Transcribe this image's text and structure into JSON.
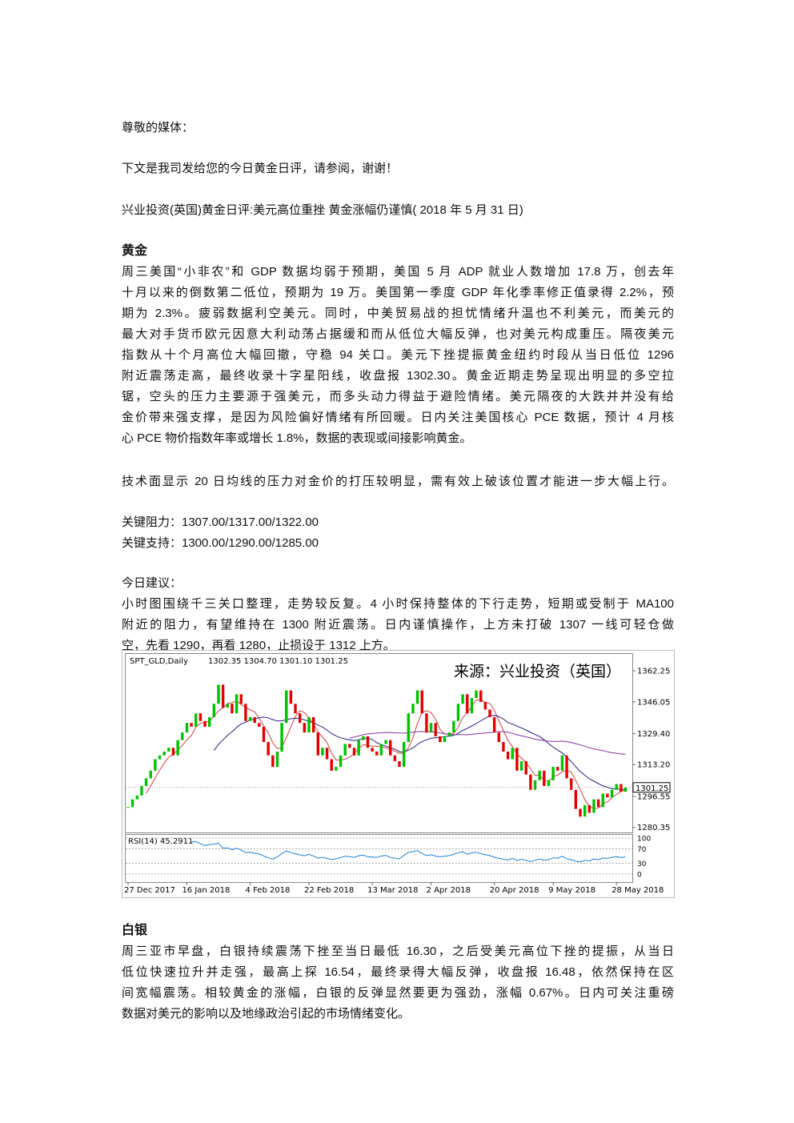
{
  "greeting": "尊敬的媒体：",
  "intro": "下文是我司发给您的今日黄金日评，请参阅，谢谢！",
  "title": "兴业投资(英国)黄金日评:美元高位重挫 黄金涨幅仍谨慎( 2018 年 5 月 31 日)",
  "gold": {
    "heading": "黄金",
    "lines": [
      "周三美国“小非农”和 GDP 数据均弱于预期，美国 5 月 ADP 就业人数增加 17.8 万，创去年",
      "十月以来的倒数第二低位，预期为 19 万。美国第一季度 GDP 年化季率修正值录得 2.2%，预",
      "期为 2.3%。疲弱数据利空美元。同时，中美贸易战的担忧情绪升温也不利美元，而美元的",
      "最大对手货币欧元因意大利动荡占据缓和而从低位大幅反弹，也对美元构成重压。隔夜美元",
      "指数从十个月高位大幅回撤，守稳 94 关口。美元下挫提振黄金纽约时段从当日低位 1296",
      "附近震荡走高，最终收录十字星阳线，收盘报 1302.30。黄金近期走势呈现出明显的多空拉",
      "锯，空头的压力主要源于强美元，而多头动力得益于避险情绪。美元隔夜的大跌并并没有给",
      "金价带来强支撑，是因为风险偏好情绪有所回暖。日内关注美国核心 PCE 数据，预计 4 月核",
      "心 PCE 物价指数年率或增长 1.8%，数据的表现或间接影响黄金。"
    ]
  },
  "technical": "技术面显示 20 日均线的压力对金价的打压较明显，需有效上破该位置才能进一步大幅上行。",
  "resistance": "关键阻力：1307.00/1317.00/1322.00",
  "support": "关键支持：1300.00/1290.00/1285.00",
  "advice": {
    "heading": "今日建议：",
    "lines": [
      "小时图围绕千三关口整理，走势较反复。4 小时保持整体的下行走势，短期或受制于 MA100",
      "附近的阻力，有望维持在 1300 附近震荡。日内谨慎操作，上方未打破 1307 一线可轻仓做",
      "空，先看 1290，再看 1280，止损设于 1312 上方。"
    ]
  },
  "chart_data": {
    "type": "candlestick",
    "symbol": "SPT_GLD,Daily",
    "header_values": "1302.35 1304.70 1301.10 1301.25",
    "source": "来源：兴业投资（英国）",
    "rsi_label": "RSI(14) 45.2911",
    "values": [
      1291,
      1295,
      1297,
      1302,
      1306,
      1310,
      1316,
      1318,
      1320,
      1322,
      1318,
      1326,
      1330,
      1335,
      1333,
      1340,
      1336,
      1333,
      1338,
      1345,
      1355,
      1343,
      1345,
      1340,
      1350,
      1345,
      1336,
      1338,
      1335,
      1333,
      1325,
      1318,
      1312,
      1320,
      1335,
      1352,
      1345,
      1340,
      1335,
      1330,
      1338,
      1330,
      1318,
      1322,
      1316,
      1310,
      1312,
      1318,
      1324,
      1322,
      1318,
      1326,
      1328,
      1322,
      1320,
      1318,
      1324,
      1326,
      1318,
      1315,
      1312,
      1325,
      1340,
      1345,
      1352,
      1340,
      1330,
      1335,
      1328,
      1325,
      1328,
      1330,
      1336,
      1345,
      1350,
      1340,
      1348,
      1352,
      1346,
      1342,
      1338,
      1330,
      1325,
      1320,
      1316,
      1322,
      1310,
      1315,
      1308,
      1300,
      1305,
      1310,
      1302,
      1305,
      1312,
      1310,
      1318,
      1306,
      1300,
      1290,
      1286,
      1292,
      1288,
      1295,
      1291,
      1298,
      1296,
      1300,
      1303,
      1299,
      1301.25
    ],
    "up_color": "#00c000",
    "down_color": "#e00000",
    "ylim": [
      1277.7,
      1371.5
    ],
    "yticks": [
      1362.25,
      1346.05,
      {
        "value": 1329.4,
        "label": "1329.40"
      },
      {
        "value": 1313.2,
        "label": "1313.20"
      },
      1296.55,
      1280.35
    ],
    "xticks": [
      {
        "value": 0,
        "label": "27 Dec 2017"
      },
      {
        "value": 13,
        "label": "16 Jan 2018"
      },
      {
        "value": 27,
        "label": "4 Feb 2018"
      },
      {
        "value": 40,
        "label": "22 Feb 2018"
      },
      {
        "value": 54,
        "label": "13 Mar 2018"
      },
      {
        "value": 67,
        "label": "2 Apr 2018"
      },
      {
        "value": 81,
        "label": "20 Apr 2018"
      },
      {
        "value": 94,
        "label": "9 May 2018"
      },
      {
        "value": 108,
        "label": "28 May 2018"
      }
    ],
    "rsi_ylim": [
      0,
      100
    ],
    "rsi_yticks": [
      100,
      70,
      30,
      0
    ]
  },
  "silver": {
    "heading": "白银",
    "lines": [
      "周三亚市早盘，白银持续震荡下挫至当日最低 16.30，之后受美元高位下挫的提振，从当日",
      "低位快速拉升并走强，最高上探 16.54，最终录得大幅反弹，收盘报 16.48，依然保持在区",
      "间宽幅震荡。相较黄金的涨幅，白银的反弹显然要更为强劲，涨幅 0.67%。日内可关注重磅",
      "数据对美元的影响以及地缘政治引起的市场情绪变化。"
    ]
  }
}
